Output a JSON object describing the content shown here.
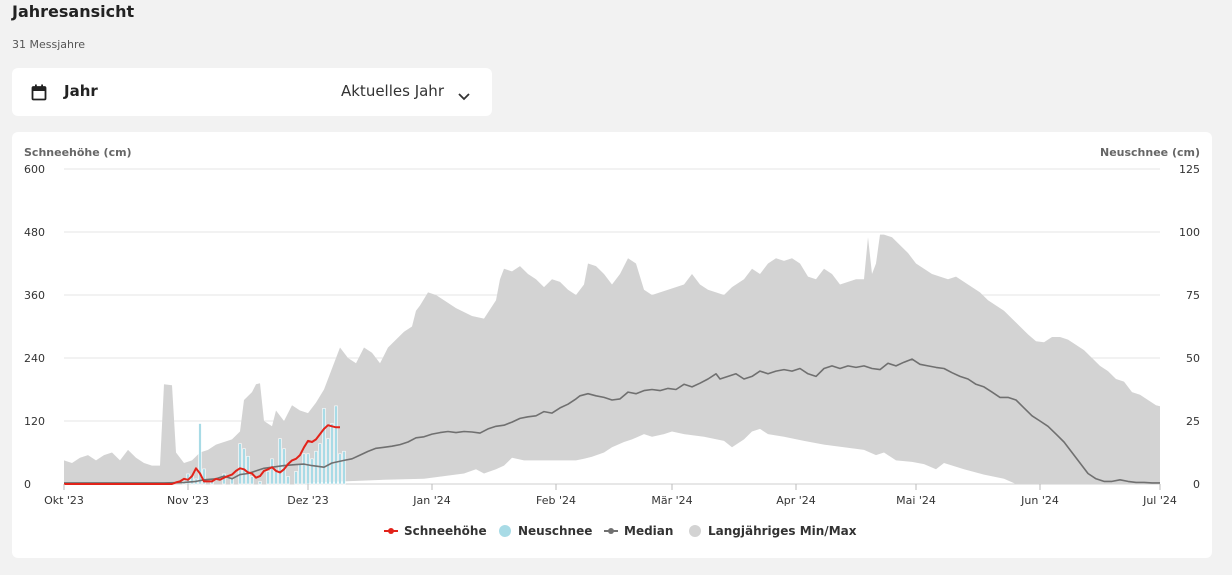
{
  "page": {
    "title": "Jahresansicht",
    "subtitle": "31 Messjahre"
  },
  "selector": {
    "label": "Jahr",
    "value": "Aktuelles Jahr",
    "icon": "calendar-icon"
  },
  "colors": {
    "snow_depth": "#e2231a",
    "new_snow": "#a8dbe6",
    "median": "#707070",
    "minmax": "#d3d3d3",
    "grid": "#e6e6e6"
  },
  "chart_data": {
    "type": "line",
    "y_left": {
      "label": "Schneehöhe (cm)",
      "min": 0,
      "max": 600,
      "ticks": [
        "0",
        "120",
        "240",
        "360",
        "480",
        "600"
      ]
    },
    "y_right": {
      "label": "Neuschnee (cm)",
      "min": 0,
      "max": 125,
      "ticks": [
        "0",
        "25",
        "50",
        "75",
        "100",
        "125"
      ]
    },
    "x_range": [
      0,
      274
    ],
    "x_ticks": [
      {
        "day": 0,
        "label": "Okt '23"
      },
      {
        "day": 31,
        "label": "Nov '23"
      },
      {
        "day": 61,
        "label": "Dez '23"
      },
      {
        "day": 92,
        "label": "Jan '24"
      },
      {
        "day": 123,
        "label": "Feb '24"
      },
      {
        "day": 152,
        "label": "Mär '24"
      },
      {
        "day": 183,
        "label": "Apr '24"
      },
      {
        "day": 213,
        "label": "Mai '24"
      },
      {
        "day": 244,
        "label": "Jun '24"
      },
      {
        "day": 274,
        "label": "Jul '24"
      }
    ],
    "legend": [
      {
        "name": "Schneehöhe",
        "type": "line-marker"
      },
      {
        "name": "Neuschnee",
        "type": "dot"
      },
      {
        "name": "Median",
        "type": "line-marker"
      },
      {
        "name": "Langjähriges Min/Max",
        "type": "dot"
      }
    ],
    "minmax_upper": [
      [
        0,
        45
      ],
      [
        2,
        40
      ],
      [
        4,
        50
      ],
      [
        6,
        55
      ],
      [
        8,
        45
      ],
      [
        10,
        55
      ],
      [
        12,
        60
      ],
      [
        14,
        45
      ],
      [
        16,
        65
      ],
      [
        18,
        50
      ],
      [
        20,
        40
      ],
      [
        22,
        35
      ],
      [
        24,
        35
      ],
      [
        25,
        190
      ],
      [
        27,
        188
      ],
      [
        28,
        60
      ],
      [
        30,
        40
      ],
      [
        32,
        45
      ],
      [
        34,
        60
      ],
      [
        36,
        65
      ],
      [
        38,
        75
      ],
      [
        40,
        80
      ],
      [
        42,
        85
      ],
      [
        44,
        100
      ],
      [
        45,
        160
      ],
      [
        47,
        175
      ],
      [
        48,
        190
      ],
      [
        49,
        192
      ],
      [
        50,
        120
      ],
      [
        52,
        110
      ],
      [
        53,
        140
      ],
      [
        55,
        120
      ],
      [
        57,
        150
      ],
      [
        59,
        140
      ],
      [
        61,
        135
      ],
      [
        63,
        155
      ],
      [
        65,
        180
      ],
      [
        67,
        220
      ],
      [
        69,
        260
      ],
      [
        71,
        240
      ],
      [
        73,
        230
      ],
      [
        75,
        260
      ],
      [
        77,
        250
      ],
      [
        79,
        230
      ],
      [
        81,
        260
      ],
      [
        83,
        275
      ],
      [
        85,
        290
      ],
      [
        87,
        300
      ],
      [
        88,
        330
      ],
      [
        89,
        340
      ],
      [
        91,
        365
      ],
      [
        93,
        360
      ],
      [
        95,
        350
      ],
      [
        98,
        335
      ],
      [
        102,
        320
      ],
      [
        105,
        315
      ],
      [
        108,
        350
      ],
      [
        109,
        390
      ],
      [
        110,
        410
      ],
      [
        112,
        405
      ],
      [
        114,
        415
      ],
      [
        116,
        400
      ],
      [
        118,
        390
      ],
      [
        120,
        375
      ],
      [
        122,
        390
      ],
      [
        124,
        385
      ],
      [
        126,
        370
      ],
      [
        128,
        360
      ],
      [
        130,
        380
      ],
      [
        131,
        420
      ],
      [
        133,
        415
      ],
      [
        135,
        400
      ],
      [
        137,
        380
      ],
      [
        139,
        400
      ],
      [
        141,
        430
      ],
      [
        143,
        420
      ],
      [
        145,
        370
      ],
      [
        147,
        360
      ],
      [
        149,
        365
      ],
      [
        151,
        370
      ],
      [
        153,
        375
      ],
      [
        155,
        380
      ],
      [
        157,
        400
      ],
      [
        159,
        380
      ],
      [
        161,
        370
      ],
      [
        163,
        365
      ],
      [
        165,
        360
      ],
      [
        167,
        375
      ],
      [
        170,
        390
      ],
      [
        172,
        410
      ],
      [
        174,
        400
      ],
      [
        176,
        420
      ],
      [
        178,
        430
      ],
      [
        180,
        425
      ],
      [
        182,
        430
      ],
      [
        184,
        420
      ],
      [
        186,
        395
      ],
      [
        188,
        390
      ],
      [
        190,
        410
      ],
      [
        192,
        400
      ],
      [
        194,
        380
      ],
      [
        196,
        385
      ],
      [
        198,
        390
      ],
      [
        200,
        390
      ],
      [
        201,
        470
      ],
      [
        202,
        400
      ],
      [
        203,
        420
      ],
      [
        204,
        475
      ],
      [
        205,
        475
      ],
      [
        207,
        470
      ],
      [
        209,
        455
      ],
      [
        211,
        440
      ],
      [
        213,
        420
      ],
      [
        215,
        410
      ],
      [
        217,
        400
      ],
      [
        219,
        395
      ],
      [
        221,
        390
      ],
      [
        223,
        395
      ],
      [
        225,
        385
      ],
      [
        227,
        375
      ],
      [
        229,
        365
      ],
      [
        231,
        350
      ],
      [
        233,
        340
      ],
      [
        235,
        330
      ],
      [
        237,
        315
      ],
      [
        239,
        300
      ],
      [
        241,
        285
      ],
      [
        243,
        272
      ],
      [
        245,
        270
      ],
      [
        247,
        280
      ],
      [
        249,
        280
      ],
      [
        251,
        275
      ],
      [
        253,
        265
      ],
      [
        255,
        255
      ],
      [
        257,
        240
      ],
      [
        259,
        225
      ],
      [
        261,
        215
      ],
      [
        263,
        200
      ],
      [
        265,
        195
      ],
      [
        267,
        175
      ],
      [
        269,
        170
      ],
      [
        271,
        160
      ],
      [
        273,
        150
      ],
      [
        274,
        148
      ]
    ],
    "minmax_lower": [
      [
        0,
        0
      ],
      [
        60,
        0
      ],
      [
        62,
        3
      ],
      [
        70,
        5
      ],
      [
        80,
        8
      ],
      [
        90,
        10
      ],
      [
        95,
        15
      ],
      [
        100,
        20
      ],
      [
        103,
        28
      ],
      [
        105,
        20
      ],
      [
        108,
        28
      ],
      [
        110,
        35
      ],
      [
        112,
        50
      ],
      [
        115,
        45
      ],
      [
        120,
        45
      ],
      [
        125,
        45
      ],
      [
        128,
        45
      ],
      [
        130,
        48
      ],
      [
        132,
        52
      ],
      [
        135,
        60
      ],
      [
        137,
        70
      ],
      [
        140,
        80
      ],
      [
        142,
        85
      ],
      [
        145,
        95
      ],
      [
        147,
        90
      ],
      [
        150,
        95
      ],
      [
        152,
        100
      ],
      [
        155,
        95
      ],
      [
        160,
        90
      ],
      [
        165,
        82
      ],
      [
        167,
        70
      ],
      [
        170,
        85
      ],
      [
        172,
        100
      ],
      [
        174,
        105
      ],
      [
        176,
        95
      ],
      [
        180,
        90
      ],
      [
        185,
        82
      ],
      [
        190,
        75
      ],
      [
        195,
        70
      ],
      [
        200,
        65
      ],
      [
        203,
        55
      ],
      [
        205,
        60
      ],
      [
        208,
        45
      ],
      [
        212,
        42
      ],
      [
        215,
        38
      ],
      [
        218,
        28
      ],
      [
        220,
        40
      ],
      [
        225,
        28
      ],
      [
        230,
        18
      ],
      [
        235,
        10
      ],
      [
        238,
        0
      ],
      [
        274,
        0
      ]
    ],
    "median": [
      [
        0,
        2
      ],
      [
        25,
        2
      ],
      [
        30,
        3
      ],
      [
        33,
        5
      ],
      [
        35,
        8
      ],
      [
        38,
        10
      ],
      [
        40,
        15
      ],
      [
        42,
        10
      ],
      [
        44,
        18
      ],
      [
        46,
        20
      ],
      [
        48,
        25
      ],
      [
        50,
        30
      ],
      [
        55,
        35
      ],
      [
        58,
        37
      ],
      [
        60,
        38
      ],
      [
        62,
        35
      ],
      [
        65,
        32
      ],
      [
        67,
        40
      ],
      [
        70,
        45
      ],
      [
        72,
        48
      ],
      [
        74,
        55
      ],
      [
        76,
        62
      ],
      [
        78,
        68
      ],
      [
        80,
        70
      ],
      [
        82,
        72
      ],
      [
        84,
        75
      ],
      [
        86,
        80
      ],
      [
        88,
        88
      ],
      [
        90,
        90
      ],
      [
        92,
        95
      ],
      [
        94,
        98
      ],
      [
        96,
        100
      ],
      [
        98,
        98
      ],
      [
        100,
        100
      ],
      [
        102,
        99
      ],
      [
        104,
        97
      ],
      [
        106,
        105
      ],
      [
        108,
        110
      ],
      [
        110,
        112
      ],
      [
        112,
        118
      ],
      [
        114,
        125
      ],
      [
        116,
        128
      ],
      [
        118,
        130
      ],
      [
        120,
        138
      ],
      [
        122,
        135
      ],
      [
        124,
        145
      ],
      [
        126,
        152
      ],
      [
        128,
        162
      ],
      [
        129,
        168
      ],
      [
        131,
        172
      ],
      [
        133,
        168
      ],
      [
        135,
        165
      ],
      [
        137,
        160
      ],
      [
        139,
        162
      ],
      [
        141,
        175
      ],
      [
        143,
        172
      ],
      [
        145,
        178
      ],
      [
        147,
        180
      ],
      [
        149,
        178
      ],
      [
        151,
        182
      ],
      [
        153,
        180
      ],
      [
        155,
        190
      ],
      [
        157,
        185
      ],
      [
        159,
        192
      ],
      [
        161,
        200
      ],
      [
        163,
        210
      ],
      [
        164,
        200
      ],
      [
        166,
        205
      ],
      [
        168,
        210
      ],
      [
        170,
        200
      ],
      [
        172,
        205
      ],
      [
        174,
        215
      ],
      [
        176,
        210
      ],
      [
        178,
        215
      ],
      [
        180,
        218
      ],
      [
        182,
        215
      ],
      [
        184,
        220
      ],
      [
        186,
        210
      ],
      [
        188,
        205
      ],
      [
        190,
        220
      ],
      [
        192,
        225
      ],
      [
        194,
        220
      ],
      [
        196,
        225
      ],
      [
        198,
        222
      ],
      [
        200,
        225
      ],
      [
        202,
        220
      ],
      [
        204,
        218
      ],
      [
        206,
        230
      ],
      [
        208,
        225
      ],
      [
        210,
        232
      ],
      [
        212,
        238
      ],
      [
        214,
        228
      ],
      [
        216,
        225
      ],
      [
        218,
        222
      ],
      [
        220,
        220
      ],
      [
        222,
        212
      ],
      [
        224,
        205
      ],
      [
        226,
        200
      ],
      [
        228,
        190
      ],
      [
        230,
        185
      ],
      [
        232,
        175
      ],
      [
        234,
        165
      ],
      [
        236,
        165
      ],
      [
        238,
        160
      ],
      [
        240,
        145
      ],
      [
        242,
        130
      ],
      [
        244,
        120
      ],
      [
        246,
        110
      ],
      [
        248,
        95
      ],
      [
        250,
        80
      ],
      [
        252,
        60
      ],
      [
        254,
        40
      ],
      [
        256,
        20
      ],
      [
        258,
        10
      ],
      [
        260,
        5
      ],
      [
        262,
        5
      ],
      [
        264,
        8
      ],
      [
        266,
        5
      ],
      [
        268,
        3
      ],
      [
        270,
        3
      ],
      [
        272,
        2
      ],
      [
        274,
        2
      ]
    ],
    "snow_depth": [
      [
        0,
        0
      ],
      [
        26,
        0
      ],
      [
        27,
        0
      ],
      [
        28,
        3
      ],
      [
        29,
        5
      ],
      [
        30,
        10
      ],
      [
        31,
        8
      ],
      [
        32,
        15
      ],
      [
        33,
        30
      ],
      [
        34,
        20
      ],
      [
        35,
        5
      ],
      [
        36,
        5
      ],
      [
        37,
        5
      ],
      [
        38,
        10
      ],
      [
        39,
        8
      ],
      [
        40,
        12
      ],
      [
        41,
        15
      ],
      [
        42,
        18
      ],
      [
        43,
        25
      ],
      [
        44,
        30
      ],
      [
        45,
        28
      ],
      [
        46,
        22
      ],
      [
        47,
        20
      ],
      [
        48,
        12
      ],
      [
        49,
        15
      ],
      [
        50,
        25
      ],
      [
        51,
        28
      ],
      [
        52,
        32
      ],
      [
        53,
        25
      ],
      [
        54,
        22
      ],
      [
        55,
        28
      ],
      [
        56,
        38
      ],
      [
        57,
        45
      ],
      [
        58,
        48
      ],
      [
        59,
        55
      ],
      [
        60,
        70
      ],
      [
        61,
        82
      ],
      [
        62,
        80
      ],
      [
        63,
        85
      ],
      [
        64,
        95
      ],
      [
        65,
        105
      ],
      [
        66,
        112
      ],
      [
        67,
        110
      ],
      [
        68,
        108
      ],
      [
        69,
        108
      ]
    ],
    "new_snow": [
      [
        30,
        1
      ],
      [
        31,
        4
      ],
      [
        32,
        3
      ],
      [
        33,
        2
      ],
      [
        34,
        24
      ],
      [
        35,
        6
      ],
      [
        37,
        2
      ],
      [
        40,
        4
      ],
      [
        42,
        2
      ],
      [
        44,
        16
      ],
      [
        45,
        14
      ],
      [
        46,
        11
      ],
      [
        47,
        3
      ],
      [
        49,
        1
      ],
      [
        51,
        5
      ],
      [
        52,
        10
      ],
      [
        53,
        5
      ],
      [
        54,
        18
      ],
      [
        55,
        14
      ],
      [
        56,
        3
      ],
      [
        58,
        5
      ],
      [
        59,
        8
      ],
      [
        60,
        12
      ],
      [
        61,
        12
      ],
      [
        62,
        10
      ],
      [
        63,
        13
      ],
      [
        64,
        16
      ],
      [
        65,
        30
      ],
      [
        66,
        18
      ],
      [
        67,
        24
      ],
      [
        68,
        31
      ],
      [
        69,
        12
      ],
      [
        70,
        13
      ]
    ]
  }
}
